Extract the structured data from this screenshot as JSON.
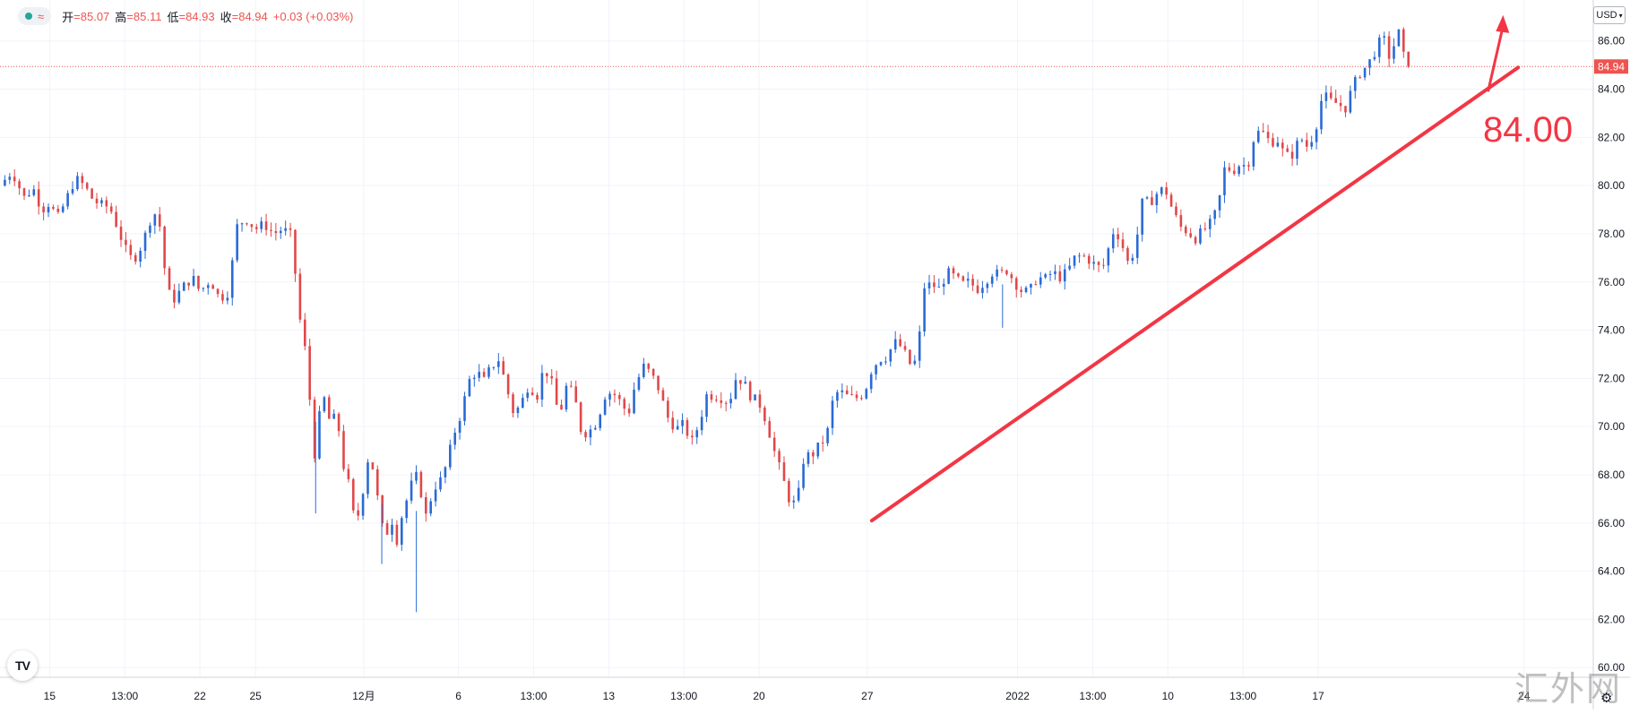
{
  "header": {
    "ohlc": [
      {
        "key": "开",
        "value": "=85.07"
      },
      {
        "key": "高",
        "value": "=85.11"
      },
      {
        "key": "低",
        "value": "=84.93"
      },
      {
        "key": "收",
        "value": "=84.94"
      }
    ],
    "change": "+0.03 (+0.03%)",
    "series_icons": [
      "status-dot-icon",
      "wave-icon"
    ]
  },
  "currency_button": "USD",
  "logo_text": "TV",
  "watermark": "汇外网",
  "colors": {
    "up": "#2a6ad4",
    "down": "#e0484a",
    "annotation": "#f23645",
    "grid": "#f0f3fa",
    "price_label_bg": "#ef5350"
  },
  "annotation": {
    "label": "84.00",
    "trend_start": {
      "x": 20.1,
      "y": 66.1
    },
    "trend_end": {
      "x": 24.4,
      "y": 84.9
    },
    "arrow_from": {
      "x": 24.2,
      "y": 83.9
    },
    "arrow_to": {
      "x": 24.3,
      "y": 87.0
    }
  },
  "chart_data": {
    "type": "candlestick",
    "title": "",
    "xlabel": "",
    "ylabel": "",
    "ylim": [
      59.6,
      87.7
    ],
    "y_ticks": [
      60,
      62,
      64,
      66,
      68,
      70,
      72,
      74,
      76,
      78,
      80,
      82,
      84,
      86
    ],
    "y_tick_labels": [
      "60.00",
      "62.00",
      "64.00",
      "66.00",
      "68.00",
      "70.00",
      "72.00",
      "74.00",
      "76.00",
      "78.00",
      "80.00",
      "82.00",
      "84.00",
      "86.00"
    ],
    "x_range": [
      14.3,
      24.9
    ],
    "x_ticks": [
      {
        "x": 14.63,
        "label": "15"
      },
      {
        "x": 15.13,
        "label": "13:00"
      },
      {
        "x": 15.63,
        "label": "22"
      },
      {
        "x": 16.0,
        "label": "25"
      },
      {
        "x": 16.72,
        "label": "12月"
      },
      {
        "x": 17.35,
        "label": "6"
      },
      {
        "x": 17.85,
        "label": "13:00"
      },
      {
        "x": 18.35,
        "label": "13"
      },
      {
        "x": 18.85,
        "label": "13:00"
      },
      {
        "x": 19.35,
        "label": "20"
      },
      {
        "x": 20.07,
        "label": "27"
      },
      {
        "x": 21.07,
        "label": "2022"
      },
      {
        "x": 21.57,
        "label": "13:00"
      },
      {
        "x": 22.07,
        "label": "10"
      },
      {
        "x": 22.57,
        "label": "13:00"
      },
      {
        "x": 23.07,
        "label": "17"
      },
      {
        "x": 24.44,
        "label": "24"
      }
    ],
    "current_price": 84.94,
    "current_price_label": "84.94",
    "anchors": [
      [
        14.3,
        80.0
      ],
      [
        14.38,
        80.6
      ],
      [
        14.46,
        79.5
      ],
      [
        14.52,
        79.9
      ],
      [
        14.58,
        79.0
      ],
      [
        14.63,
        79.3
      ],
      [
        14.68,
        78.6
      ],
      [
        14.74,
        79.4
      ],
      [
        14.8,
        80.3
      ],
      [
        14.86,
        80.0
      ],
      [
        14.92,
        79.4
      ],
      [
        14.97,
        79.2
      ],
      [
        15.03,
        79.1
      ],
      [
        15.08,
        78.3
      ],
      [
        15.13,
        77.4
      ],
      [
        15.18,
        76.9
      ],
      [
        15.22,
        77.2
      ],
      [
        15.27,
        78.0
      ],
      [
        15.32,
        79.0
      ],
      [
        15.37,
        78.2
      ],
      [
        15.41,
        75.6
      ],
      [
        15.46,
        75.3
      ],
      [
        15.52,
        75.8
      ],
      [
        15.58,
        76.2
      ],
      [
        15.63,
        75.6
      ],
      [
        15.7,
        76.1
      ],
      [
        15.76,
        75.3
      ],
      [
        15.82,
        75.6
      ],
      [
        15.88,
        78.4
      ],
      [
        15.94,
        78.6
      ],
      [
        16.0,
        78.2
      ],
      [
        16.06,
        78.4
      ],
      [
        16.12,
        78.0
      ],
      [
        16.18,
        78.2
      ],
      [
        16.24,
        77.9
      ],
      [
        16.27,
        76.0
      ],
      [
        16.31,
        73.6
      ],
      [
        16.35,
        72.8
      ],
      [
        16.38,
        68.2
      ],
      [
        16.42,
        70.3
      ],
      [
        16.46,
        71.2
      ],
      [
        16.5,
        70.0
      ],
      [
        16.54,
        70.6
      ],
      [
        16.58,
        68.5
      ],
      [
        16.62,
        67.6
      ],
      [
        16.66,
        66.0
      ],
      [
        16.7,
        66.6
      ],
      [
        16.74,
        68.7
      ],
      [
        16.78,
        68.3
      ],
      [
        16.82,
        66.7
      ],
      [
        16.86,
        65.2
      ],
      [
        16.9,
        66.3
      ],
      [
        16.94,
        65.3
      ],
      [
        16.98,
        66.5
      ],
      [
        17.02,
        67.2
      ],
      [
        17.06,
        68.1
      ],
      [
        17.1,
        67.3
      ],
      [
        17.14,
        66.1
      ],
      [
        17.18,
        67.5
      ],
      [
        17.22,
        67.6
      ],
      [
        17.27,
        68.4
      ],
      [
        17.32,
        69.7
      ],
      [
        17.37,
        70.6
      ],
      [
        17.42,
        71.9
      ],
      [
        17.47,
        72.3
      ],
      [
        17.52,
        71.9
      ],
      [
        17.57,
        72.5
      ],
      [
        17.62,
        72.8
      ],
      [
        17.67,
        71.6
      ],
      [
        17.72,
        70.5
      ],
      [
        17.77,
        71.0
      ],
      [
        17.82,
        71.8
      ],
      [
        17.87,
        71.2
      ],
      [
        17.92,
        72.5
      ],
      [
        17.97,
        71.8
      ],
      [
        18.02,
        70.4
      ],
      [
        18.07,
        71.7
      ],
      [
        18.12,
        71.3
      ],
      [
        18.17,
        69.7
      ],
      [
        18.22,
        69.8
      ],
      [
        18.27,
        70.2
      ],
      [
        18.33,
        71.4
      ],
      [
        18.38,
        71.4
      ],
      [
        18.43,
        71.0
      ],
      [
        18.48,
        70.5
      ],
      [
        18.52,
        71.6
      ],
      [
        18.58,
        72.5
      ],
      [
        18.63,
        72.2
      ],
      [
        18.68,
        71.6
      ],
      [
        18.74,
        70.4
      ],
      [
        18.8,
        69.9
      ],
      [
        18.85,
        70.1
      ],
      [
        18.9,
        69.3
      ],
      [
        18.95,
        70.1
      ],
      [
        19.0,
        71.3
      ],
      [
        19.05,
        71.3
      ],
      [
        19.1,
        71.2
      ],
      [
        19.15,
        71.0
      ],
      [
        19.2,
        72.1
      ],
      [
        19.25,
        71.8
      ],
      [
        19.3,
        71.2
      ],
      [
        19.35,
        71.0
      ],
      [
        19.4,
        70.2
      ],
      [
        19.45,
        69.0
      ],
      [
        19.5,
        68.0
      ],
      [
        19.55,
        67.0
      ],
      [
        19.6,
        66.7
      ],
      [
        19.65,
        68.8
      ],
      [
        19.7,
        68.8
      ],
      [
        19.75,
        69.2
      ],
      [
        19.8,
        69.6
      ],
      [
        19.85,
        71.4
      ],
      [
        19.9,
        71.4
      ],
      [
        19.95,
        71.2
      ],
      [
        20.0,
        71.2
      ],
      [
        20.05,
        71.4
      ],
      [
        20.1,
        72.4
      ],
      [
        20.15,
        72.8
      ],
      [
        20.2,
        72.9
      ],
      [
        20.25,
        73.5
      ],
      [
        20.3,
        73.3
      ],
      [
        20.35,
        72.6
      ],
      [
        20.4,
        72.7
      ],
      [
        20.45,
        75.8
      ],
      [
        20.5,
        75.9
      ],
      [
        20.55,
        75.7
      ],
      [
        20.6,
        76.4
      ],
      [
        20.65,
        76.2
      ],
      [
        20.7,
        75.9
      ],
      [
        20.75,
        76.0
      ],
      [
        20.8,
        75.7
      ],
      [
        20.85,
        76.0
      ],
      [
        20.9,
        76.4
      ],
      [
        20.95,
        76.3
      ],
      [
        21.0,
        76.5
      ],
      [
        21.05,
        76.0
      ],
      [
        21.1,
        75.6
      ],
      [
        21.15,
        75.6
      ],
      [
        21.2,
        76.2
      ],
      [
        21.25,
        76.1
      ],
      [
        21.3,
        76.4
      ],
      [
        21.35,
        76.2
      ],
      [
        21.4,
        76.4
      ],
      [
        21.45,
        77.0
      ],
      [
        21.5,
        77.1
      ],
      [
        21.55,
        76.9
      ],
      [
        21.6,
        76.6
      ],
      [
        21.65,
        76.7
      ],
      [
        21.7,
        78.1
      ],
      [
        21.75,
        77.9
      ],
      [
        21.8,
        76.8
      ],
      [
        21.85,
        77.3
      ],
      [
        21.9,
        79.3
      ],
      [
        21.95,
        79.3
      ],
      [
        22.0,
        79.7
      ],
      [
        22.05,
        79.9
      ],
      [
        22.1,
        79.0
      ],
      [
        22.15,
        78.3
      ],
      [
        22.2,
        78.1
      ],
      [
        22.25,
        77.8
      ],
      [
        22.3,
        78.1
      ],
      [
        22.35,
        78.4
      ],
      [
        22.4,
        79.0
      ],
      [
        22.45,
        80.8
      ],
      [
        22.5,
        80.6
      ],
      [
        22.55,
        80.9
      ],
      [
        22.6,
        80.8
      ],
      [
        22.65,
        82.2
      ],
      [
        22.7,
        82.2
      ],
      [
        22.75,
        81.8
      ],
      [
        22.8,
        81.9
      ],
      [
        22.85,
        81.2
      ],
      [
        22.9,
        81.3
      ],
      [
        22.95,
        82.0
      ],
      [
        23.0,
        81.6
      ],
      [
        23.05,
        82.3
      ],
      [
        23.1,
        83.8
      ],
      [
        23.15,
        83.5
      ],
      [
        23.2,
        83.4
      ],
      [
        23.25,
        83.2
      ],
      [
        23.3,
        84.1
      ],
      [
        23.35,
        84.7
      ],
      [
        23.4,
        85.0
      ],
      [
        23.45,
        85.6
      ],
      [
        23.5,
        86.2
      ],
      [
        23.55,
        85.2
      ],
      [
        23.6,
        86.5
      ],
      [
        23.65,
        85.0
      ],
      [
        23.7,
        84.94
      ]
    ]
  }
}
